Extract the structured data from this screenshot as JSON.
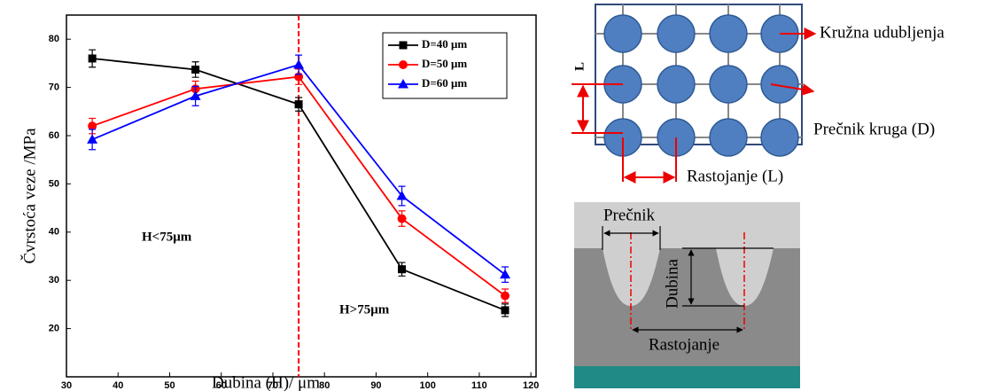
{
  "chart_data": {
    "type": "line",
    "xlabel": "Dubina (H)/ μm",
    "ylabel": "Čvrstoća veze /MPa",
    "x": [
      35,
      55,
      75,
      95,
      115
    ],
    "series": [
      {
        "name": "D=40 μm",
        "color": "#000000",
        "marker": "square",
        "values": [
          76,
          73.7,
          66.5,
          32.3,
          23.8
        ],
        "errors": [
          1.8,
          1.6,
          1.4,
          1.4,
          1.3
        ]
      },
      {
        "name": "D=50 μm",
        "color": "#ff0000",
        "marker": "circle",
        "values": [
          62,
          69.7,
          72.2,
          42.8,
          26.8
        ],
        "errors": [
          1.6,
          1.6,
          1.6,
          1.6,
          1.4
        ]
      },
      {
        "name": "D=60 μm",
        "color": "#0000ff",
        "marker": "triangle",
        "values": [
          59.2,
          68.2,
          74.7,
          47.5,
          31.2
        ],
        "errors": [
          2.1,
          2.0,
          2.0,
          2.0,
          1.6
        ]
      }
    ],
    "xlim": [
      30,
      121
    ],
    "ylim": [
      10,
      85
    ],
    "xticks": [
      30,
      40,
      50,
      60,
      70,
      80,
      90,
      100,
      110,
      120
    ],
    "yticks": [
      20,
      30,
      40,
      50,
      60,
      70,
      80
    ],
    "vline": {
      "x": 75,
      "color": "#ff0000"
    },
    "annotations": [
      "H<75μm",
      "H>75μm"
    ],
    "legend": "upper right"
  },
  "diagram": {
    "top": {
      "side_label": "L",
      "dimples": "Kružna udubljenja",
      "diameter": "Prečnik kruga (D)",
      "spacing": "Rastojanje (L)"
    },
    "section": {
      "diameter": "Prečnik",
      "depth": "Dubina",
      "spacing": "Rastojanje"
    }
  }
}
